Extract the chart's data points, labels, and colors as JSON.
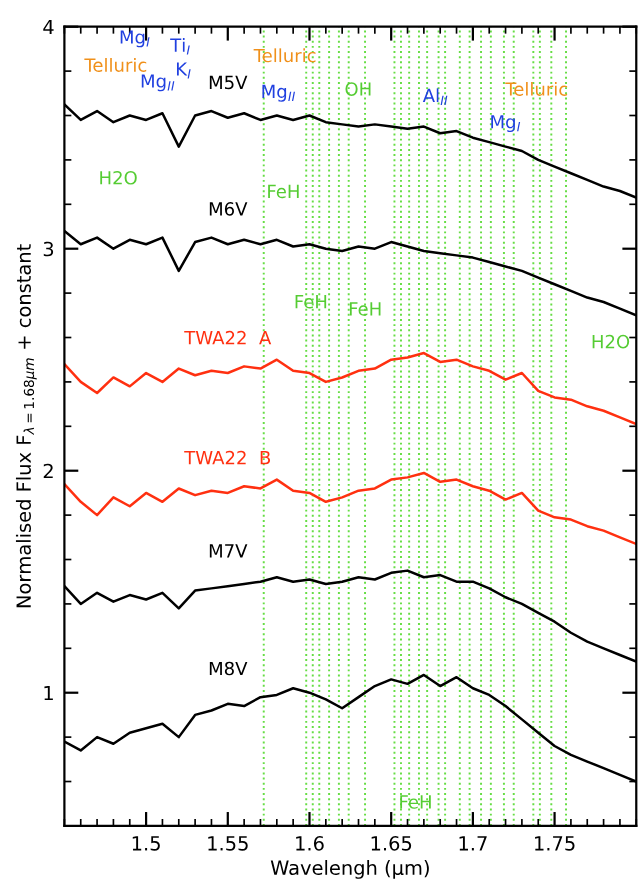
{
  "chart_data": {
    "type": "line",
    "xlabel": "Wavelengh (μm)",
    "ylabel": "Normalised Flux F$_{λ=1.68μm}$ + constant",
    "x": [
      1.45,
      1.46,
      1.47,
      1.48,
      1.49,
      1.5,
      1.51,
      1.52,
      1.53,
      1.54,
      1.55,
      1.56,
      1.57,
      1.58,
      1.59,
      1.6,
      1.61,
      1.62,
      1.63,
      1.64,
      1.65,
      1.66,
      1.67,
      1.68,
      1.69,
      1.7,
      1.71,
      1.72,
      1.73,
      1.74,
      1.75,
      1.76,
      1.77,
      1.78,
      1.79,
      1.8
    ],
    "series": [
      {
        "name": "M5V",
        "color": "#000000",
        "values": [
          3.65,
          3.58,
          3.62,
          3.57,
          3.6,
          3.58,
          3.61,
          3.46,
          3.6,
          3.62,
          3.59,
          3.61,
          3.58,
          3.6,
          3.58,
          3.6,
          3.57,
          3.56,
          3.55,
          3.56,
          3.55,
          3.54,
          3.55,
          3.52,
          3.53,
          3.5,
          3.48,
          3.46,
          3.44,
          3.4,
          3.37,
          3.34,
          3.31,
          3.28,
          3.26,
          3.23
        ]
      },
      {
        "name": "M6V",
        "color": "#000000",
        "values": [
          3.08,
          3.02,
          3.05,
          3.0,
          3.04,
          3.02,
          3.05,
          2.9,
          3.03,
          3.05,
          3.02,
          3.04,
          3.02,
          3.04,
          3.01,
          3.02,
          3.0,
          2.99,
          3.01,
          3.0,
          3.03,
          3.01,
          2.99,
          2.98,
          2.97,
          2.96,
          2.94,
          2.92,
          2.9,
          2.87,
          2.84,
          2.81,
          2.78,
          2.76,
          2.73,
          2.7
        ]
      },
      {
        "name": "TWA22  A",
        "color": "#ff3010",
        "values": [
          2.48,
          2.4,
          2.35,
          2.42,
          2.38,
          2.44,
          2.4,
          2.46,
          2.43,
          2.45,
          2.44,
          2.47,
          2.46,
          2.5,
          2.45,
          2.44,
          2.4,
          2.42,
          2.45,
          2.46,
          2.5,
          2.51,
          2.53,
          2.49,
          2.5,
          2.47,
          2.45,
          2.41,
          2.44,
          2.36,
          2.33,
          2.32,
          2.29,
          2.27,
          2.24,
          2.21
        ]
      },
      {
        "name": "TWA22  B",
        "color": "#ff3010",
        "values": [
          1.94,
          1.86,
          1.8,
          1.88,
          1.84,
          1.9,
          1.86,
          1.92,
          1.89,
          1.91,
          1.9,
          1.93,
          1.92,
          1.96,
          1.91,
          1.9,
          1.86,
          1.88,
          1.91,
          1.92,
          1.96,
          1.97,
          1.99,
          1.95,
          1.96,
          1.93,
          1.91,
          1.87,
          1.9,
          1.82,
          1.79,
          1.78,
          1.75,
          1.73,
          1.7,
          1.67
        ]
      },
      {
        "name": "M7V",
        "color": "#000000",
        "values": [
          1.48,
          1.4,
          1.45,
          1.41,
          1.44,
          1.42,
          1.45,
          1.38,
          1.46,
          1.47,
          1.48,
          1.49,
          1.5,
          1.52,
          1.5,
          1.51,
          1.49,
          1.5,
          1.52,
          1.51,
          1.54,
          1.55,
          1.52,
          1.53,
          1.5,
          1.5,
          1.47,
          1.43,
          1.4,
          1.36,
          1.32,
          1.27,
          1.23,
          1.2,
          1.17,
          1.14
        ]
      },
      {
        "name": "M8V",
        "color": "#000000",
        "values": [
          0.78,
          0.74,
          0.8,
          0.77,
          0.82,
          0.84,
          0.86,
          0.8,
          0.9,
          0.92,
          0.95,
          0.94,
          0.98,
          0.99,
          1.02,
          1.0,
          0.97,
          0.93,
          0.98,
          1.03,
          1.06,
          1.04,
          1.08,
          1.03,
          1.07,
          1.02,
          0.99,
          0.94,
          0.88,
          0.82,
          0.76,
          0.72,
          0.69,
          0.66,
          0.63,
          0.6
        ]
      }
    ],
    "xlim": [
      1.45,
      1.8
    ],
    "ylim": [
      0.4,
      4.0
    ],
    "xticks": [
      1.5,
      1.55,
      1.6,
      1.65,
      1.7,
      1.75
    ],
    "yticks": [
      1,
      2,
      3,
      4
    ],
    "grid": false,
    "marker": "none",
    "line_style": "solid",
    "ref_lines": [
      {
        "axis": "x",
        "value": 1.572,
        "color": "#66dd44",
        "line_style": "dotted"
      },
      {
        "axis": "x",
        "value": 1.598,
        "color": "#66dd44",
        "line_style": "dotted"
      },
      {
        "axis": "x",
        "value": 1.602,
        "color": "#66dd44",
        "line_style": "dotted"
      },
      {
        "axis": "x",
        "value": 1.606,
        "color": "#66dd44",
        "line_style": "dotted"
      },
      {
        "axis": "x",
        "value": 1.612,
        "color": "#66dd44",
        "line_style": "dotted"
      },
      {
        "axis": "x",
        "value": 1.618,
        "color": "#66dd44",
        "line_style": "dotted"
      },
      {
        "axis": "x",
        "value": 1.624,
        "color": "#66dd44",
        "line_style": "dotted"
      },
      {
        "axis": "x",
        "value": 1.634,
        "color": "#66dd44",
        "line_style": "dotted"
      },
      {
        "axis": "x",
        "value": 1.652,
        "color": "#66dd44",
        "line_style": "dotted"
      },
      {
        "axis": "x",
        "value": 1.656,
        "color": "#66dd44",
        "line_style": "dotted"
      },
      {
        "axis": "x",
        "value": 1.661,
        "color": "#66dd44",
        "line_style": "dotted"
      },
      {
        "axis": "x",
        "value": 1.667,
        "color": "#66dd44",
        "line_style": "dotted"
      },
      {
        "axis": "x",
        "value": 1.672,
        "color": "#66dd44",
        "line_style": "dotted"
      },
      {
        "axis": "x",
        "value": 1.679,
        "color": "#66dd44",
        "line_style": "dotted"
      },
      {
        "axis": "x",
        "value": 1.683,
        "color": "#66dd44",
        "line_style": "dotted"
      },
      {
        "axis": "x",
        "value": 1.692,
        "color": "#66dd44",
        "line_style": "dotted"
      },
      {
        "axis": "x",
        "value": 1.698,
        "color": "#66dd44",
        "line_style": "dotted"
      },
      {
        "axis": "x",
        "value": 1.705,
        "color": "#66dd44",
        "line_style": "dotted"
      },
      {
        "axis": "x",
        "value": 1.711,
        "color": "#66dd44",
        "line_style": "dotted"
      },
      {
        "axis": "x",
        "value": 1.719,
        "color": "#66dd44",
        "line_style": "dotted"
      },
      {
        "axis": "x",
        "value": 1.725,
        "color": "#66dd44",
        "line_style": "dotted"
      },
      {
        "axis": "x",
        "value": 1.737,
        "color": "#66dd44",
        "line_style": "dotted"
      },
      {
        "axis": "x",
        "value": 1.741,
        "color": "#66dd44",
        "line_style": "dotted"
      },
      {
        "axis": "x",
        "value": 1.748,
        "color": "#66dd44",
        "line_style": "dotted"
      },
      {
        "axis": "x",
        "value": 1.757,
        "color": "#66dd44",
        "line_style": "dotted"
      }
    ],
    "annotations": [
      "Telluric",
      "Mg$_{I}$",
      "Ti$_{I}$",
      "Mg$_{II}$",
      "K$_{I}$",
      "Telluric",
      "Mg$_{II}$",
      "OH",
      "Al$_{II}$",
      "Telluric",
      "Mg$_{I}$",
      "H2O",
      "FeH",
      "FeH",
      "FeH",
      "H2O",
      "FeH"
    ]
  }
}
